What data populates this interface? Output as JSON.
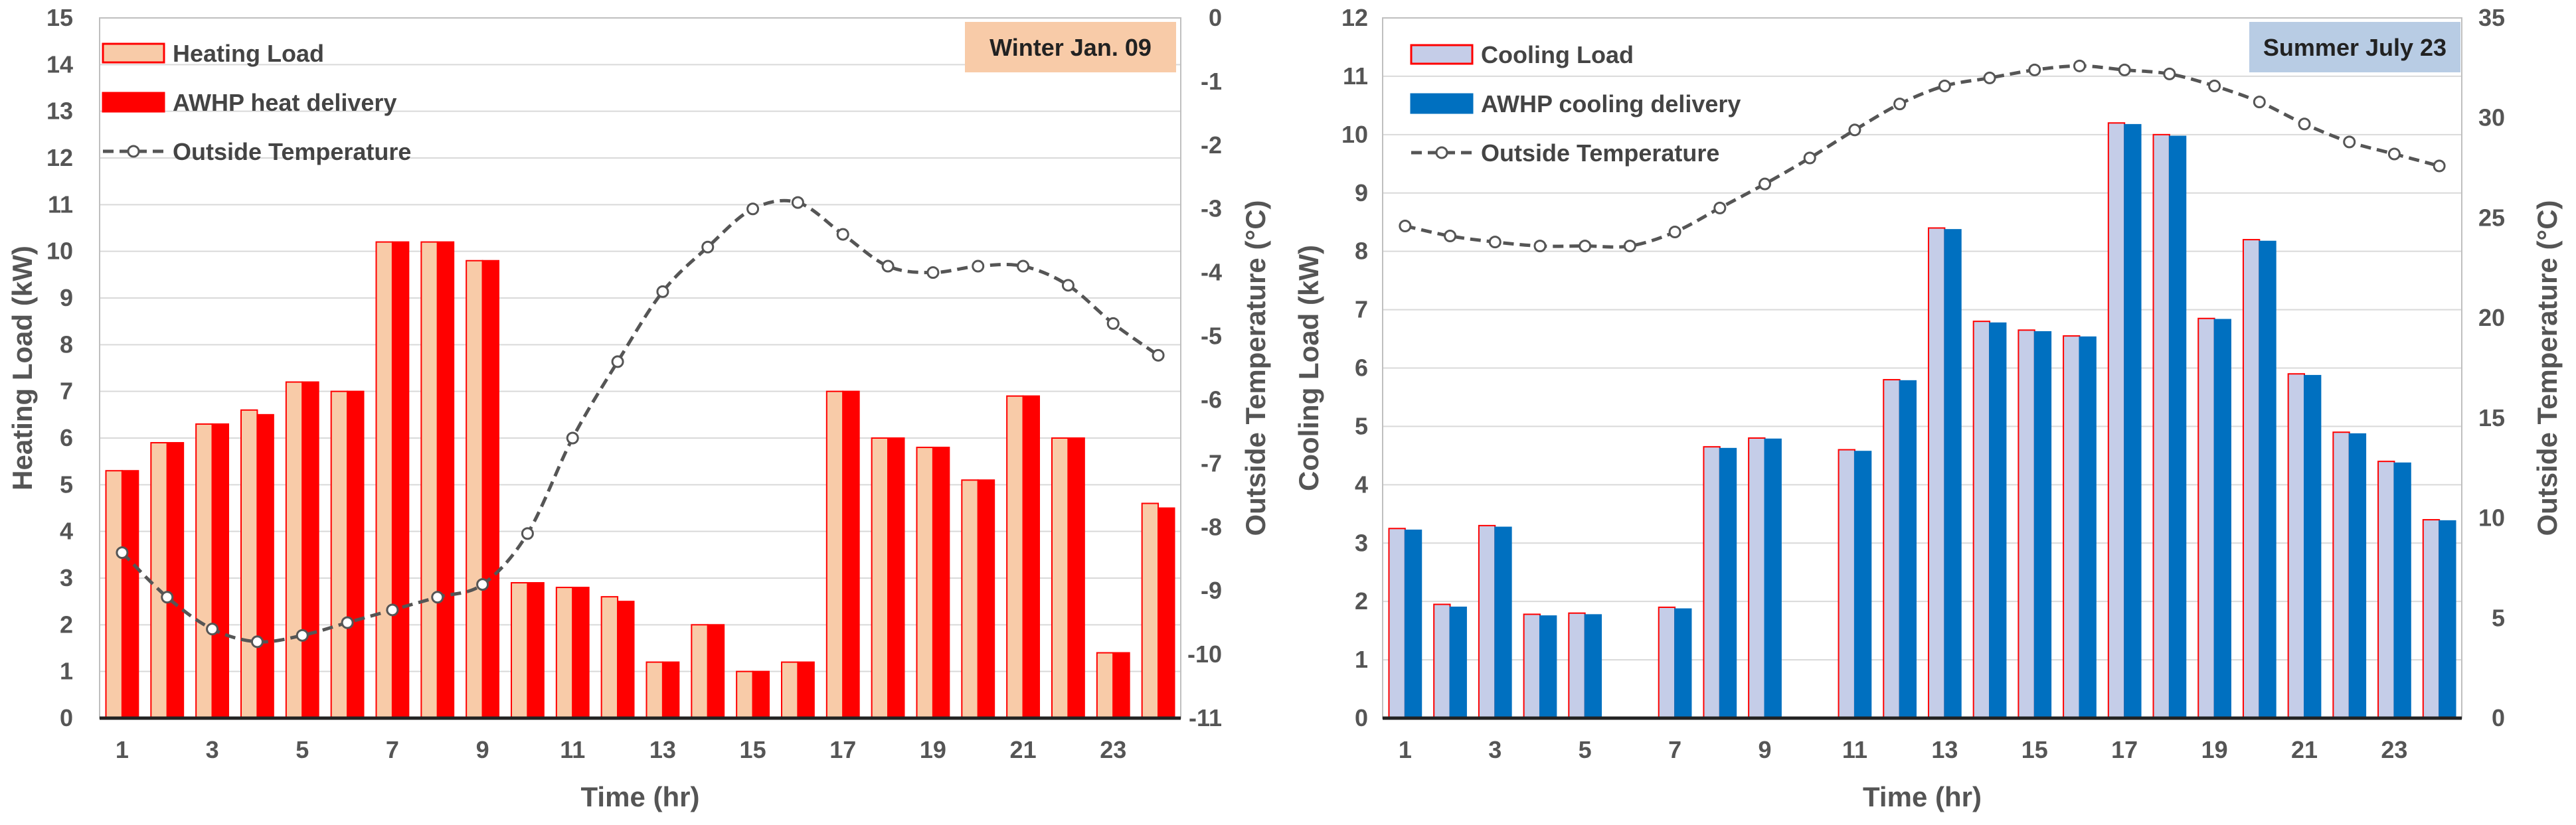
{
  "chart_data": [
    {
      "type": "bar",
      "id": "heating",
      "badge": "Winter Jan. 09",
      "badge_color": "#f8cba8",
      "x_categories": [
        1,
        2,
        3,
        4,
        5,
        6,
        7,
        8,
        9,
        10,
        11,
        12,
        13,
        14,
        15,
        16,
        17,
        18,
        19,
        20,
        21,
        22,
        23,
        24
      ],
      "x_tick_labels": [
        "1",
        "3",
        "5",
        "7",
        "9",
        "11",
        "13",
        "15",
        "17",
        "19",
        "21",
        "23"
      ],
      "xlabel": "Time (hr)",
      "ylabel": "Heating Load (kW)",
      "ylim": [
        0,
        15
      ],
      "y_ticks": [
        "0",
        "1",
        "2",
        "3",
        "4",
        "5",
        "6",
        "7",
        "8",
        "9",
        "10",
        "11",
        "12",
        "13",
        "14",
        "15"
      ],
      "y2label": "Outside Temperature (°C)",
      "y2lim": [
        -11,
        0
      ],
      "y2_ticks": [
        "-11",
        "-10",
        "-9",
        "-8",
        "-7",
        "-6",
        "-5",
        "-4",
        "-3",
        "-2",
        "-1",
        "0"
      ],
      "grid": true,
      "legend": "top-left",
      "series": [
        {
          "name": "Heating Load",
          "kind": "bar",
          "fill": "#f8cba8",
          "stroke": "#ff0000",
          "values": [
            5.3,
            5.9,
            6.3,
            6.6,
            7.2,
            7.0,
            10.2,
            10.2,
            9.8,
            2.9,
            2.8,
            2.6,
            1.2,
            2.0,
            1.0,
            1.2,
            7.0,
            6.0,
            5.8,
            5.1,
            6.9,
            6.0,
            1.4,
            4.6
          ]
        },
        {
          "name": "AWHP heat delivery",
          "kind": "bar",
          "fill": "#ff0000",
          "stroke": "#ff0000",
          "values": [
            5.3,
            5.9,
            6.3,
            6.5,
            7.2,
            7.0,
            10.2,
            10.2,
            9.8,
            2.9,
            2.8,
            2.5,
            1.2,
            2.0,
            1.0,
            1.2,
            7.0,
            6.0,
            5.8,
            5.1,
            6.9,
            6.0,
            1.4,
            4.5
          ]
        },
        {
          "name": "Outside Temperature",
          "kind": "line",
          "axis": "y2",
          "color": "#555555",
          "values": [
            -8.4,
            -9.1,
            -9.6,
            -9.8,
            -9.7,
            -9.5,
            -9.3,
            -9.1,
            -8.9,
            -8.1,
            -6.6,
            -5.4,
            -4.3,
            -3.6,
            -3.0,
            -2.9,
            -3.4,
            -3.9,
            -4.0,
            -3.9,
            -3.9,
            -4.2,
            -4.8,
            -5.3
          ]
        }
      ]
    },
    {
      "type": "bar",
      "id": "cooling",
      "badge": "Summer July 23",
      "badge_color": "#b8cce4",
      "x_categories": [
        1,
        2,
        3,
        4,
        5,
        6,
        7,
        8,
        9,
        10,
        11,
        12,
        13,
        14,
        15,
        16,
        17,
        18,
        19,
        20,
        21,
        22,
        23,
        24
      ],
      "x_tick_labels": [
        "1",
        "3",
        "5",
        "7",
        "9",
        "11",
        "13",
        "15",
        "17",
        "19",
        "21",
        "23"
      ],
      "xlabel": "Time (hr)",
      "ylabel": "Cooling Load (kW)",
      "ylim": [
        0,
        12
      ],
      "y_ticks": [
        "0",
        "1",
        "2",
        "3",
        "4",
        "5",
        "6",
        "7",
        "8",
        "9",
        "10",
        "11",
        "12"
      ],
      "y2label": "Outside Temperature (°C)",
      "y2lim": [
        0,
        35
      ],
      "y2_ticks": [
        "0",
        "5",
        "10",
        "15",
        "20",
        "25",
        "30",
        "35"
      ],
      "grid": true,
      "legend": "top-left",
      "series": [
        {
          "name": "Cooling Load",
          "kind": "bar",
          "fill": "#c5cde8",
          "stroke": "#ff0000",
          "values": [
            3.25,
            1.95,
            3.3,
            1.78,
            1.8,
            0,
            1.9,
            4.65,
            4.8,
            0,
            4.6,
            5.8,
            8.4,
            6.8,
            6.65,
            6.55,
            10.2,
            10.0,
            6.85,
            8.2,
            5.9,
            4.9,
            4.4,
            3.4
          ]
        },
        {
          "name": "AWHP cooling delivery",
          "kind": "bar",
          "fill": "#0070c0",
          "stroke": "#0070c0",
          "values": [
            3.22,
            1.9,
            3.27,
            1.75,
            1.77,
            0,
            1.87,
            4.62,
            4.78,
            0,
            4.57,
            5.78,
            8.37,
            6.77,
            6.62,
            6.53,
            10.17,
            9.97,
            6.83,
            8.17,
            5.87,
            4.87,
            4.37,
            3.38
          ]
        },
        {
          "name": "Outside Temperature",
          "kind": "line",
          "axis": "y2",
          "color": "#555555",
          "values": [
            24.6,
            24.1,
            23.8,
            23.6,
            23.6,
            23.6,
            24.3,
            25.5,
            26.7,
            28.0,
            29.4,
            30.7,
            31.6,
            32.0,
            32.4,
            32.6,
            32.4,
            32.2,
            31.6,
            30.8,
            29.7,
            28.8,
            28.2,
            27.6
          ]
        }
      ]
    }
  ]
}
